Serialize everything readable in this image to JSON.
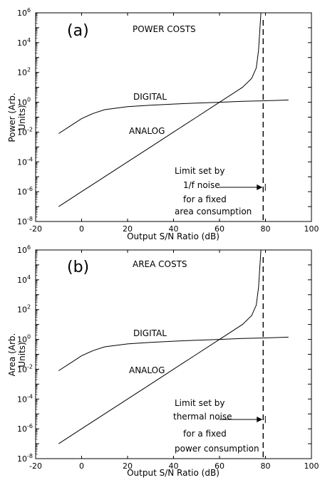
{
  "chart_data": [
    {
      "type": "line",
      "panel_label": "(a)",
      "title": "POWER COSTS",
      "xlabel": "Output S/N Ratio (dB)",
      "ylabel_line1": "Power (Arb.",
      "ylabel_line2": "Units)",
      "xlim": [
        -20,
        100
      ],
      "ylim_log10": [
        -8,
        6
      ],
      "yscale": "log",
      "x_ticks": [
        "-20",
        "0",
        "20",
        "40",
        "60",
        "80",
        "100"
      ],
      "y_ticks": [
        {
          "base": "10",
          "exp": "-8"
        },
        {
          "base": "10",
          "exp": "-6"
        },
        {
          "base": "10",
          "exp": "-4"
        },
        {
          "base": "10",
          "exp": "-2"
        },
        {
          "base": "10",
          "exp": "0"
        },
        {
          "base": "10",
          "exp": "2"
        },
        {
          "base": "10",
          "exp": "4"
        },
        {
          "base": "10",
          "exp": "6"
        }
      ],
      "grid": false,
      "series": [
        {
          "name": "DIGITAL",
          "x": [
            -10,
            -5,
            0,
            5,
            10,
            20,
            30,
            40,
            50,
            60,
            70,
            80,
            90
          ],
          "y_log10": [
            -2.1,
            -1.6,
            -1.1,
            -0.75,
            -0.5,
            -0.3,
            -0.2,
            -0.12,
            -0.06,
            0,
            0.06,
            0.1,
            0.15
          ]
        },
        {
          "name": "ANALOG",
          "x": [
            -10,
            0,
            10,
            20,
            30,
            40,
            50,
            60,
            70,
            74,
            76,
            77,
            78
          ],
          "y_log10": [
            -7,
            -6,
            -5,
            -4,
            -3,
            -2,
            -1,
            0,
            1,
            1.6,
            2.3,
            3.5,
            6
          ]
        }
      ],
      "limit_x": 79,
      "annotation_lines": [
        "Limit set by",
        "1/f noise",
        "for a fixed",
        "area consumption"
      ]
    },
    {
      "type": "line",
      "panel_label": "(b)",
      "title": "AREA COSTS",
      "xlabel": "Output S/N Ratio (dB)",
      "ylabel_line1": "Area (Arb.",
      "ylabel_line2": "Units)",
      "xlim": [
        -20,
        100
      ],
      "ylim_log10": [
        -8,
        6
      ],
      "yscale": "log",
      "x_ticks": [
        "-20",
        "0",
        "20",
        "40",
        "60",
        "80",
        "100"
      ],
      "y_ticks": [
        {
          "base": "10",
          "exp": "-8"
        },
        {
          "base": "10",
          "exp": "-6"
        },
        {
          "base": "10",
          "exp": "-4"
        },
        {
          "base": "10",
          "exp": "-2"
        },
        {
          "base": "10",
          "exp": "0"
        },
        {
          "base": "10",
          "exp": "2"
        },
        {
          "base": "10",
          "exp": "4"
        },
        {
          "base": "10",
          "exp": "6"
        }
      ],
      "grid": false,
      "series": [
        {
          "name": "DIGITAL",
          "x": [
            -10,
            -5,
            0,
            5,
            10,
            20,
            30,
            40,
            50,
            60,
            70,
            80,
            90
          ],
          "y_log10": [
            -2.1,
            -1.6,
            -1.1,
            -0.75,
            -0.5,
            -0.3,
            -0.2,
            -0.12,
            -0.06,
            0,
            0.06,
            0.1,
            0.15
          ]
        },
        {
          "name": "ANALOG",
          "x": [
            -10,
            0,
            10,
            20,
            30,
            40,
            50,
            60,
            70,
            74,
            76,
            77,
            78
          ],
          "y_log10": [
            -7,
            -6,
            -5,
            -4,
            -3,
            -2,
            -1,
            0,
            1,
            1.6,
            2.3,
            3.5,
            6
          ]
        }
      ],
      "limit_x": 79,
      "annotation_lines": [
        "Limit set by",
        "thermal noise",
        "for a fixed",
        "power consumption"
      ]
    }
  ]
}
